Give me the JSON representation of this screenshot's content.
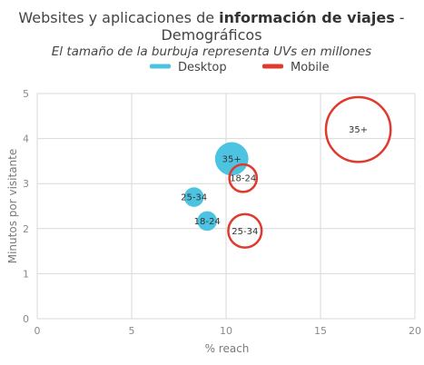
{
  "chart_data": {
    "type": "scatter",
    "title_part1": "Websites y aplicaciones de ",
    "title_bold": "información de viajes",
    "title_part2": " -",
    "title_line2": "Demográficos",
    "subtitle": "El tamaño de la burbuja representa UVs en millones",
    "xlabel": "% reach",
    "ylabel": "Minutos por visitante",
    "xlim": [
      0,
      20
    ],
    "ylim": [
      0,
      5
    ],
    "x_ticks": [
      0,
      5,
      10,
      15,
      20
    ],
    "y_ticks": [
      0,
      1,
      2,
      3,
      4,
      5
    ],
    "grid": true,
    "legend_position": "top",
    "series": [
      {
        "name": "Desktop",
        "color": "#4cc3e0",
        "style": "filled",
        "points": [
          {
            "x": 10.3,
            "y": 3.55,
            "label": "35+",
            "size": 17
          },
          {
            "x": 8.3,
            "y": 2.7,
            "label": "25-34",
            "size": 10
          },
          {
            "x": 9.0,
            "y": 2.17,
            "label": "18-24",
            "size": 10
          }
        ]
      },
      {
        "name": "Mobile",
        "color": "#e03a2f",
        "style": "outline",
        "points": [
          {
            "x": 17.0,
            "y": 4.2,
            "label": "35+",
            "size": 33
          },
          {
            "x": 10.9,
            "y": 3.12,
            "label": "18-24",
            "size": 14
          },
          {
            "x": 11.0,
            "y": 1.95,
            "label": "25-34",
            "size": 17
          }
        ]
      }
    ]
  }
}
